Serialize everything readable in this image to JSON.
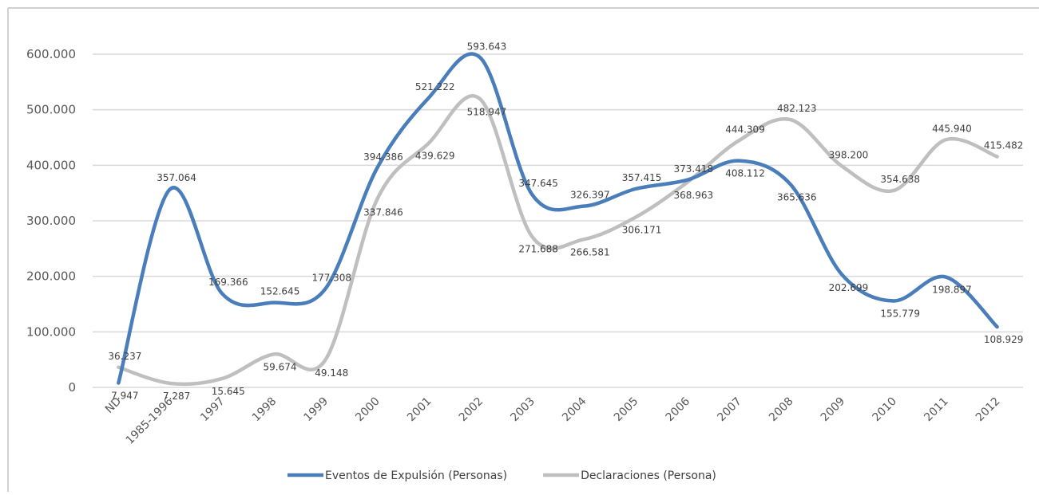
{
  "chart_data": {
    "type": "line",
    "categories": [
      "ND",
      "1985-1996",
      "1997",
      "1998",
      "1999",
      "2000",
      "2001",
      "2002",
      "2003",
      "2004",
      "2005",
      "2006",
      "2007",
      "2008",
      "2009",
      "2010",
      "2011",
      "2012"
    ],
    "series": [
      {
        "name": "Eventos de Expulsión (Personas)",
        "color": "#4a7ebb",
        "values": [
          7947,
          357064,
          169366,
          152645,
          177308,
          394386,
          521222,
          593643,
          347645,
          326397,
          357415,
          373418,
          408112,
          365636,
          202699,
          155779,
          198897,
          108929
        ],
        "value_labels": [
          "7.947",
          "357.064",
          "169.366",
          "152.645",
          "177.308",
          "394.386",
          "521.222",
          "593.643",
          "347.645",
          "326.397",
          "357.415",
          "373.418",
          "408.112",
          "365.636",
          "202.699",
          "155.779",
          "198.897",
          "108.929"
        ]
      },
      {
        "name": "Declaraciones (Persona)",
        "color": "#bfbfbf",
        "values": [
          36237,
          7287,
          15645,
          59674,
          49148,
          337846,
          439629,
          518947,
          271688,
          266581,
          306171,
          368963,
          444309,
          482123,
          398200,
          354638,
          445940,
          415482
        ],
        "value_labels": [
          "36.237",
          "7.287",
          "15.645",
          "59.674",
          "49.148",
          "337.846",
          "439.629",
          "518.947",
          "271.688",
          "266.581",
          "306.171",
          "368.963",
          "444.309",
          "482.123",
          "398.200",
          "354.638",
          "445.940",
          "415.482"
        ]
      }
    ],
    "ylim": [
      0,
      650000
    ],
    "yticks": [
      0,
      {
        "value": 100000,
        "label": "100.000"
      },
      {
        "value": 200000,
        "label": "200.000"
      },
      {
        "value": 300000,
        "label": "300.000"
      },
      {
        "value": 400000,
        "label": "400.000"
      },
      {
        "value": 500000,
        "label": "500.000"
      },
      {
        "value": 600000,
        "label": "600.000"
      }
    ],
    "grid": true,
    "legend": "bottom",
    "smooth": true
  }
}
